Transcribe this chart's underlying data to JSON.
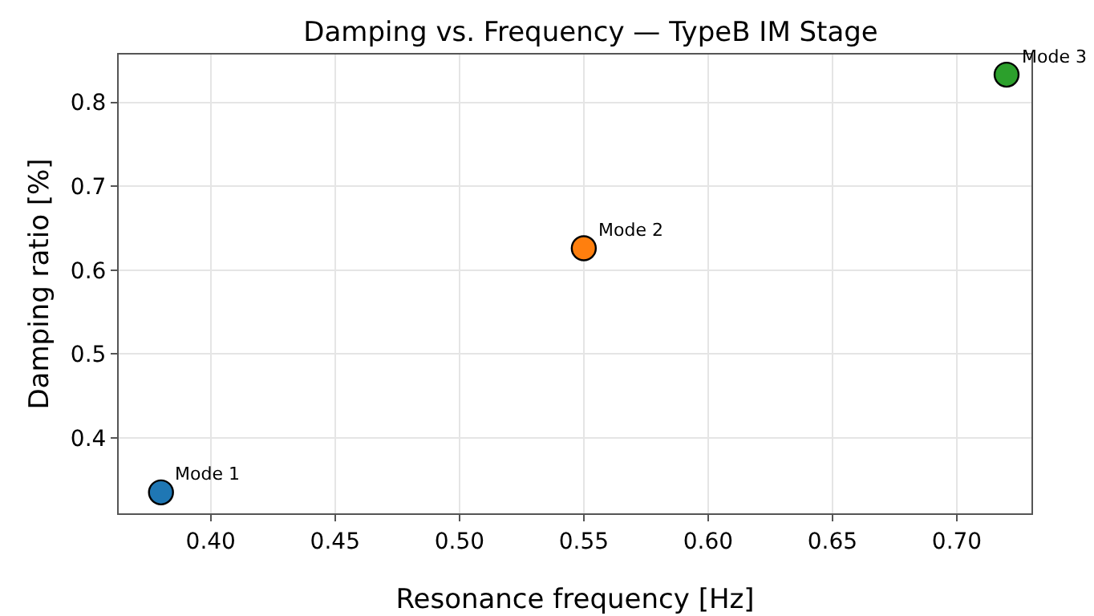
{
  "chart_data": {
    "type": "scatter",
    "title": "Damping vs. Frequency — TypeB IM Stage",
    "xlabel": "Resonance frequency [Hz]",
    "ylabel": "Damping ratio [%]",
    "x": [
      0.38,
      0.55,
      0.72
    ],
    "values": [
      0.335,
      0.626,
      0.833
    ],
    "colors": [
      "#1f77b4",
      "#ff7f0e",
      "#2ca02c"
    ],
    "marker": "circle",
    "xlim": [
      0.363,
      0.73
    ],
    "xticks": [
      {
        "value": 0.4,
        "label": "0.40"
      },
      {
        "value": 0.45,
        "label": "0.45"
      },
      {
        "value": 0.5,
        "label": "0.50"
      },
      {
        "value": 0.55,
        "label": "0.55"
      },
      {
        "value": 0.6,
        "label": "0.60"
      },
      {
        "value": 0.65,
        "label": "0.65"
      },
      {
        "value": 0.7,
        "label": "0.70"
      }
    ],
    "ylim": [
      0.31,
      0.857
    ],
    "yticks": [
      0.4,
      0.5,
      0.6,
      0.7,
      0.8
    ],
    "grid": true,
    "annotations": [
      {
        "text": "Mode 1",
        "x": 0.38,
        "y": 0.335
      },
      {
        "text": "Mode 2",
        "x": 0.55,
        "y": 0.626
      },
      {
        "text": "Mode 3",
        "x": 0.72,
        "y": 0.833
      }
    ]
  }
}
